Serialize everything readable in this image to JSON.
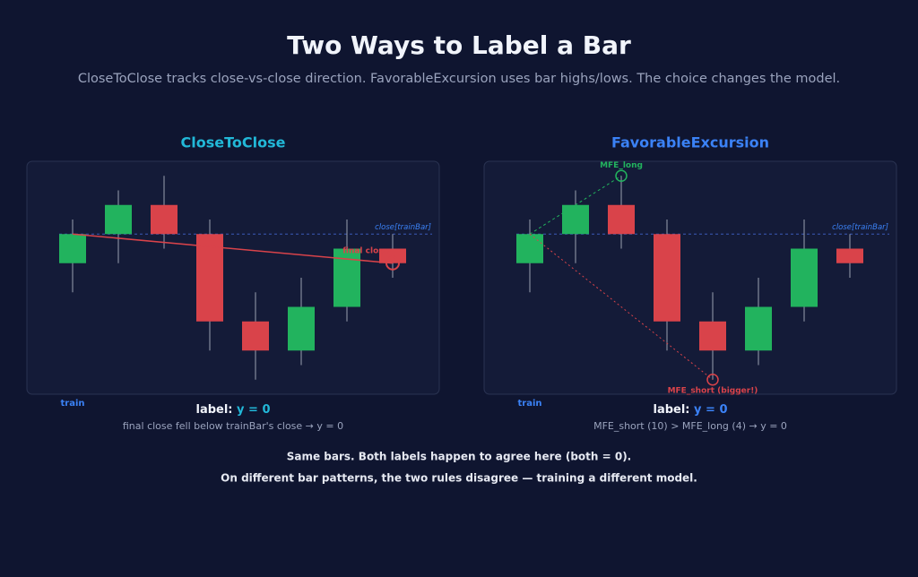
{
  "header": {
    "title": "Two Ways to Label a Bar",
    "subtitle": "CloseToClose tracks close-vs-close direction. FavorableExcursion uses bar highs/lows. The choice changes the model."
  },
  "candles": [
    {
      "open": 98,
      "high": 101,
      "low": 96,
      "close": 100
    },
    {
      "open": 100,
      "high": 103,
      "low": 98,
      "close": 102
    },
    {
      "open": 102,
      "high": 104,
      "low": 99,
      "close": 100
    },
    {
      "open": 100,
      "high": 101,
      "low": 92,
      "close": 94
    },
    {
      "open": 94,
      "high": 96,
      "low": 90,
      "close": 92
    },
    {
      "open": 92,
      "high": 97,
      "low": 91,
      "close": 95
    },
    {
      "open": 95,
      "high": 101,
      "low": 94,
      "close": 99
    },
    {
      "open": 99,
      "high": 100,
      "low": 97,
      "close": 98
    }
  ],
  "ylim": [
    89,
    105
  ],
  "panels": [
    {
      "title": "CloseToClose",
      "train": "train",
      "ref_label": "close[trainBar]",
      "annotations": [
        "final close"
      ],
      "label_key": "label:",
      "label_value": "y = 0",
      "note": "final close fell below trainBar's close → y = 0"
    },
    {
      "title": "FavorableExcursion",
      "train": "train",
      "ref_label": "close[trainBar]",
      "annotations": [
        "MFE_long",
        "MFE_short (bigger!)"
      ],
      "label_key": "label:",
      "label_value": "y = 0",
      "note": "MFE_short (10) > MFE_long (4) → y = 0"
    }
  ],
  "footer": [
    "Same bars. Both labels happen to agree here (both = 0).",
    "On different bar patterns, the two rules disagree — training a different model."
  ]
}
